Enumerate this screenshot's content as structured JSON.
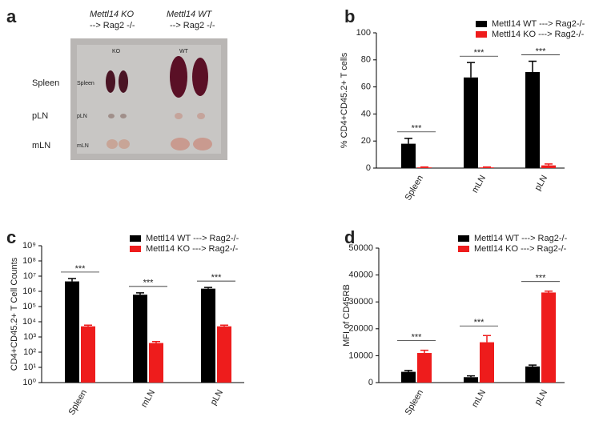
{
  "photo_panel": {
    "panel": "a",
    "groups": [
      {
        "line1": "Mettl14 KO",
        "line2": "--> Rag2 -/-"
      },
      {
        "line1": "Mettl14 WT",
        "line2": "--> Rag2 -/-"
      }
    ],
    "row_labels": [
      "Spleen",
      "pLN",
      "mLN"
    ],
    "photo_texts": [
      "KO",
      "WT",
      "Spleen",
      "pLN",
      "mLN"
    ]
  },
  "chart_data": [
    {
      "panel": "b",
      "type": "bar",
      "categories": [
        "Spleen",
        "mLN",
        "pLN"
      ],
      "series": [
        {
          "name": "Mettl14 WT ---> Rag2-/-",
          "color": "#000000",
          "values": [
            18,
            67,
            71
          ],
          "errors": [
            4,
            11,
            8
          ]
        },
        {
          "name": "Mettl14 KO ---> Rag2-/-",
          "color": "#ee1c1c",
          "values": [
            0.5,
            0.5,
            2
          ],
          "errors": [
            0.3,
            0.3,
            1
          ]
        }
      ],
      "ylabel": "% CD4+CD45.2+ T cells",
      "ylim": [
        0,
        100
      ],
      "yticks": [
        0,
        20,
        40,
        60,
        80,
        100
      ],
      "log": false,
      "annotations": [
        "***",
        "***",
        "***"
      ]
    },
    {
      "panel": "c",
      "type": "bar",
      "categories": [
        "Spleen",
        "mLN",
        "pLN"
      ],
      "series": [
        {
          "name": "Mettl14 WT ---> Rag2-/-",
          "color": "#000000",
          "values": [
            4500000,
            600000,
            1500000
          ],
          "errors": [
            2500000,
            200000,
            300000
          ]
        },
        {
          "name": "Mettl14 KO ---> Rag2-/-",
          "color": "#ee1c1c",
          "values": [
            5000,
            400,
            5000
          ],
          "errors": [
            1000,
            100,
            1000
          ]
        }
      ],
      "ylabel": "CD4+CD45.2+ T Cell Counts",
      "ylim": [
        1,
        1000000000
      ],
      "log": true,
      "yticks": [
        {
          "value": 1,
          "label": "10⁰"
        },
        {
          "value": 10,
          "label": "10¹"
        },
        {
          "value": 100,
          "label": "10²"
        },
        {
          "value": 1000,
          "label": "10³"
        },
        {
          "value": 10000,
          "label": "10⁴"
        },
        {
          "value": 100000,
          "label": "10⁵"
        },
        {
          "value": 1000000,
          "label": "10⁶"
        },
        {
          "value": 10000000,
          "label": "10⁷"
        },
        {
          "value": 100000000,
          "label": "10⁸"
        },
        {
          "value": 1000000000,
          "label": "10⁹"
        }
      ],
      "annotations": [
        "***",
        "***",
        "***"
      ]
    },
    {
      "panel": "d",
      "type": "bar",
      "categories": [
        "Spleen",
        "mLN",
        "pLN"
      ],
      "series": [
        {
          "name": "Mettl14 WT ---> Rag2-/-",
          "color": "#000000",
          "values": [
            4000,
            2000,
            6000
          ],
          "errors": [
            500,
            500,
            500
          ]
        },
        {
          "name": "Mettl14 KO ---> Rag2-/-",
          "color": "#ee1c1c",
          "values": [
            11000,
            15000,
            33500
          ],
          "errors": [
            1000,
            2500,
            500
          ]
        }
      ],
      "ylabel": "MFI of CD45RB",
      "ylim": [
        0,
        50000
      ],
      "yticks": [
        0,
        10000,
        20000,
        30000,
        40000,
        50000
      ],
      "log": false,
      "annotations": [
        "***",
        "***",
        "***"
      ]
    }
  ]
}
